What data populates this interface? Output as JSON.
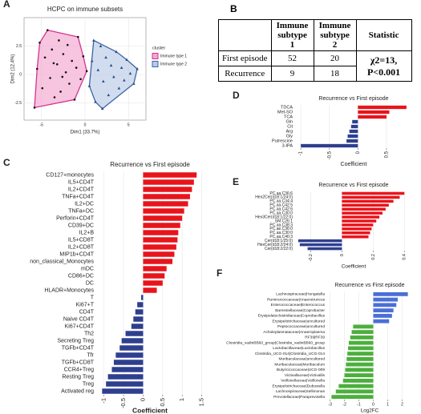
{
  "chart_data": [
    {
      "panel": "A",
      "type": "scatter",
      "title": "HCPC on immune subsets",
      "xlabel": "Dim1 (33.7%)",
      "ylabel": "Dim2 (12.4%)",
      "legend_title": "cluster",
      "xlim": [
        -7,
        7
      ],
      "xticks": [
        -5,
        0,
        5
      ],
      "ylim": [
        -4,
        5
      ],
      "yticks": [
        -2.5,
        0,
        2.5
      ],
      "grid": true,
      "series": [
        {
          "name": "Immune type 1",
          "color": "#d6338f",
          "fill": "#f3a6cf",
          "point_color": "#111111",
          "marker": "circle",
          "x": [
            -5.8,
            -5.5,
            -5.2,
            -4.9,
            -4.6,
            -4.3,
            -4.0,
            -3.8,
            -3.5,
            -3.2,
            -3.0,
            -2.8,
            -2.5,
            -2.2,
            -2.0,
            -1.8,
            -1.5,
            -1.2,
            -1.0,
            -0.8,
            -0.5,
            -0.2,
            0.2,
            -3.6,
            -2.6
          ],
          "y": [
            -2.9,
            0.5,
            2.8,
            -1.2,
            1.5,
            3.9,
            -0.3,
            2.2,
            -2.0,
            0.9,
            3.0,
            -1.5,
            1.8,
            0.2,
            2.6,
            -0.8,
            1.2,
            -2.2,
            0.6,
            3.3,
            -0.4,
            1.6,
            0.3,
            1.0,
            -0.2
          ]
        },
        {
          "name": "Immune type 2",
          "color": "#3a65a8",
          "fill": "#b8cbe6",
          "point_color": "#2b4f8a",
          "marker": "triangle",
          "x": [
            0.5,
            0.8,
            1.2,
            1.5,
            1.8,
            2.1,
            2.4,
            2.7,
            3.0,
            3.3,
            3.6,
            3.9,
            4.2,
            4.5,
            4.8,
            5.2,
            5.6,
            1.0,
            2.0,
            6.0
          ],
          "y": [
            -1.0,
            1.2,
            -2.4,
            0.4,
            2.5,
            -0.6,
            1.5,
            -1.8,
            0.8,
            -0.2,
            2.0,
            -1.2,
            0.6,
            -0.5,
            1.3,
            0.1,
            -0.8,
            3.0,
            -3.0,
            0.5
          ]
        }
      ]
    },
    {
      "panel": "C",
      "type": "barh",
      "title": "Recurrence vs First episode",
      "xlabel": "Coefficient",
      "positive_color": "#e8141c",
      "negative_color": "#2e3f8f",
      "xlim": [
        -1.2,
        1.55
      ],
      "xticks": [
        -1.0,
        -0.5,
        0.0,
        0.5,
        1.0,
        1.5
      ],
      "grid": true,
      "categories": [
        "CD127+monocytes",
        "IL5+CD4T",
        "IL2+CD4T",
        "TNFa+CD4T",
        "IL2+DC",
        "TNFa+DC",
        "Perforin+CD4T",
        "CD39+DC",
        "IL2+B",
        "IL5+CD8T",
        "IL2+CD8T",
        "MIP1b+CD4T",
        "non_classical_Monocytes",
        "mDC",
        "CD86+DC",
        "DC",
        "HLADR+Monocytes",
        "T",
        "Ki67+T",
        "CD4T",
        "Naive CD4T",
        "Ki67+CD4T",
        "Th2",
        "Secreting Treg",
        "TGFb+CD4T",
        "Tfr",
        "TGFb+CD8T",
        "CCR4+Treg",
        "Resting Treg",
        "Treg",
        "Activated reg"
      ],
      "values": [
        1.37,
        1.3,
        1.25,
        1.2,
        1.15,
        1.05,
        1.0,
        0.95,
        0.9,
        0.88,
        0.85,
        0.8,
        0.75,
        0.6,
        0.55,
        0.5,
        0.35,
        -0.05,
        -0.15,
        -0.2,
        -0.25,
        -0.3,
        -0.45,
        -0.55,
        -0.6,
        -0.7,
        -0.75,
        -0.8,
        -0.9,
        -0.95,
        -1.05
      ]
    },
    {
      "panel": "D",
      "type": "barh",
      "title": "Recurrence vs First episode",
      "xlabel": "Coefficient",
      "positive_color": "#e8141c",
      "negative_color": "#2e3f8f",
      "xlim": [
        -1.1,
        0.95
      ],
      "xticks": [
        -1.0,
        -0.5,
        0.0,
        0.5
      ],
      "grid": true,
      "categories": [
        "TDCA",
        "Met-SO",
        "TCA",
        "Gln",
        "Cit",
        "Arg",
        "Gly",
        "Putrescine",
        "3-IPA"
      ],
      "values": [
        0.85,
        0.55,
        0.5,
        -0.1,
        -0.12,
        -0.15,
        -0.18,
        -0.2,
        -1.0
      ]
    },
    {
      "panel": "E",
      "type": "barh",
      "title": "Recurrence vs First episode",
      "xlabel": "Coefficient",
      "positive_color": "#e8141c",
      "negative_color": "#2e3f8f",
      "xlim": [
        -0.3,
        0.45
      ],
      "xticks": [
        -0.2,
        0.0,
        0.2,
        0.4
      ],
      "grid": true,
      "categories": [
        "PC.aa.C36:6",
        "Hex2Cer(d18:1/24:0)",
        "PC.aa.C34:4",
        "PC.aa.C42:5",
        "PC.aa.C42:6",
        "PC.aa.C30:0",
        "Hex3Cer(d18:1/22:0)",
        "SM.C26:1",
        "PC.aa.C38:3",
        "PC.ae.C36:0",
        "PC.aa.C30:0",
        "PC.aa.C40:3",
        "Cer(d18:1/25:0)",
        "HexCer(d18:2/24:0)",
        "Cer(d18:2/22:0)"
      ],
      "values": [
        0.4,
        0.37,
        0.33,
        0.3,
        0.28,
        0.26,
        0.24,
        0.22,
        0.2,
        0.19,
        0.18,
        0.17,
        -0.28,
        -0.27,
        -0.22
      ]
    },
    {
      "panel": "F",
      "type": "barh",
      "title": "Recurrence vs First episode",
      "xlabel": "Log2FC",
      "positive_color": "#4a6fd6",
      "negative_color": "#4caf3c",
      "xlim": [
        -3.2,
        2.7
      ],
      "xticks": [
        -3,
        -2,
        -1,
        0,
        1,
        2
      ],
      "grid": true,
      "categories": [
        "Lachnospiraceae|Hungatella",
        "Ruminococcaceae|Anaerotruncus",
        "Enterococcaceae|Enterococcus",
        "Barnesiellaceae|Coprobacter",
        "Erysipelatoclostridiaceae|Coprobacillus",
        "Erysipelotrichaceae|uncultured",
        "Peptococcaceae|uncultured",
        "Acholeplasmataceae|Anaeroplasma",
        "RF39|RF39",
        "Clostridia_vadinBB60_group|Clostridia_vadinBB60_group",
        "Lactobacillaceae|Lactobacillus",
        "Clostridia_UCG-014|Clostridia_UCG-014",
        "Muribaculaceae|uncultured",
        "Muribaculaceae|Muribaculum",
        "Butyricicoccaceae|UCG-009",
        "Victivallaceae|Victivallis",
        "Veillonellaceae|Veillonella",
        "Erysipelotrichaceae|Dubosiella",
        "Lachnospiraceae|Sellimonas",
        "Prevotellaceae|Paraprevotella"
      ],
      "values": [
        2.4,
        1.7,
        1.6,
        1.4,
        1.3,
        1.1,
        -1.4,
        -1.5,
        -1.6,
        -1.7,
        -1.75,
        -1.8,
        -1.85,
        -1.9,
        -1.95,
        -2.0,
        -2.1,
        -2.4,
        -2.6,
        -2.9
      ]
    }
  ],
  "table": {
    "panel": "B",
    "header": [
      "Immune subtype 1",
      "Immune subtype 2",
      "Statistic"
    ],
    "rows": [
      {
        "label": "First episode",
        "values": [
          52,
          20
        ]
      },
      {
        "label": "Recurrence",
        "values": [
          9,
          18
        ]
      }
    ],
    "statistic": [
      "χ2=13,",
      "P<0.001"
    ]
  }
}
